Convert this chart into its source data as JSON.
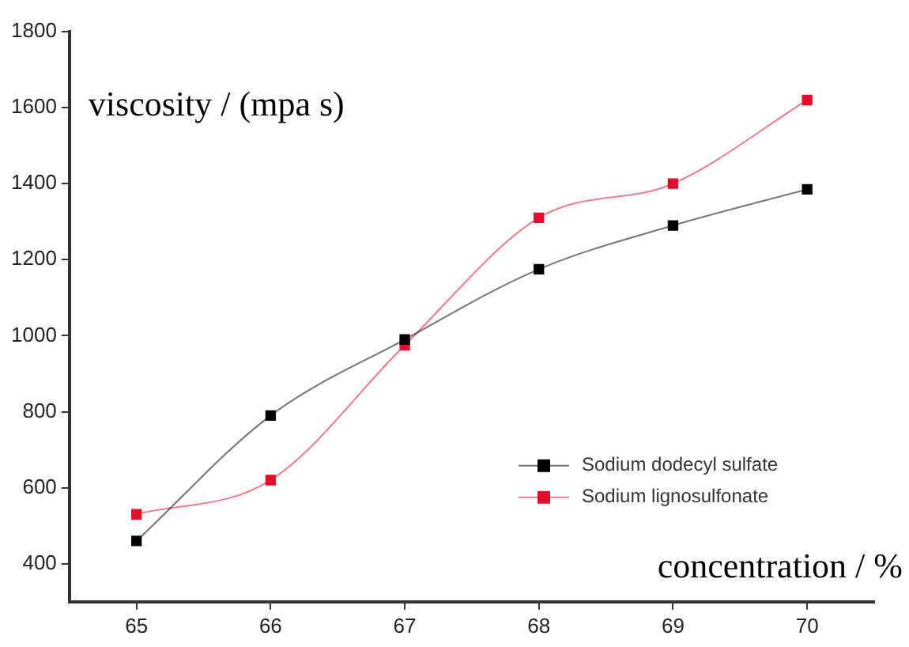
{
  "chart_data": {
    "type": "line",
    "xlabel": "concentration / %",
    "ylabel": "viscosity / (mpa s)",
    "x": [
      65,
      66,
      67,
      68,
      69,
      70
    ],
    "series": [
      {
        "name": "Sodium dodecyl sulfate",
        "color": "#000000",
        "values": [
          460,
          790,
          990,
          1175,
          1290,
          1385
        ]
      },
      {
        "name": "Sodium lignosulfonate",
        "color": "#e0102a",
        "values": [
          530,
          620,
          975,
          1310,
          1400,
          1620
        ]
      }
    ],
    "xlim": [
      64.5,
      70.5
    ],
    "xticks": [
      65,
      66,
      67,
      68,
      69,
      70
    ],
    "ylim": [
      300,
      1800
    ],
    "yticks": [
      400,
      600,
      800,
      1000,
      1200,
      1400,
      1600,
      1800
    ],
    "grid": false,
    "legend": "bottom right",
    "marker": "square",
    "line_style": "solid"
  }
}
